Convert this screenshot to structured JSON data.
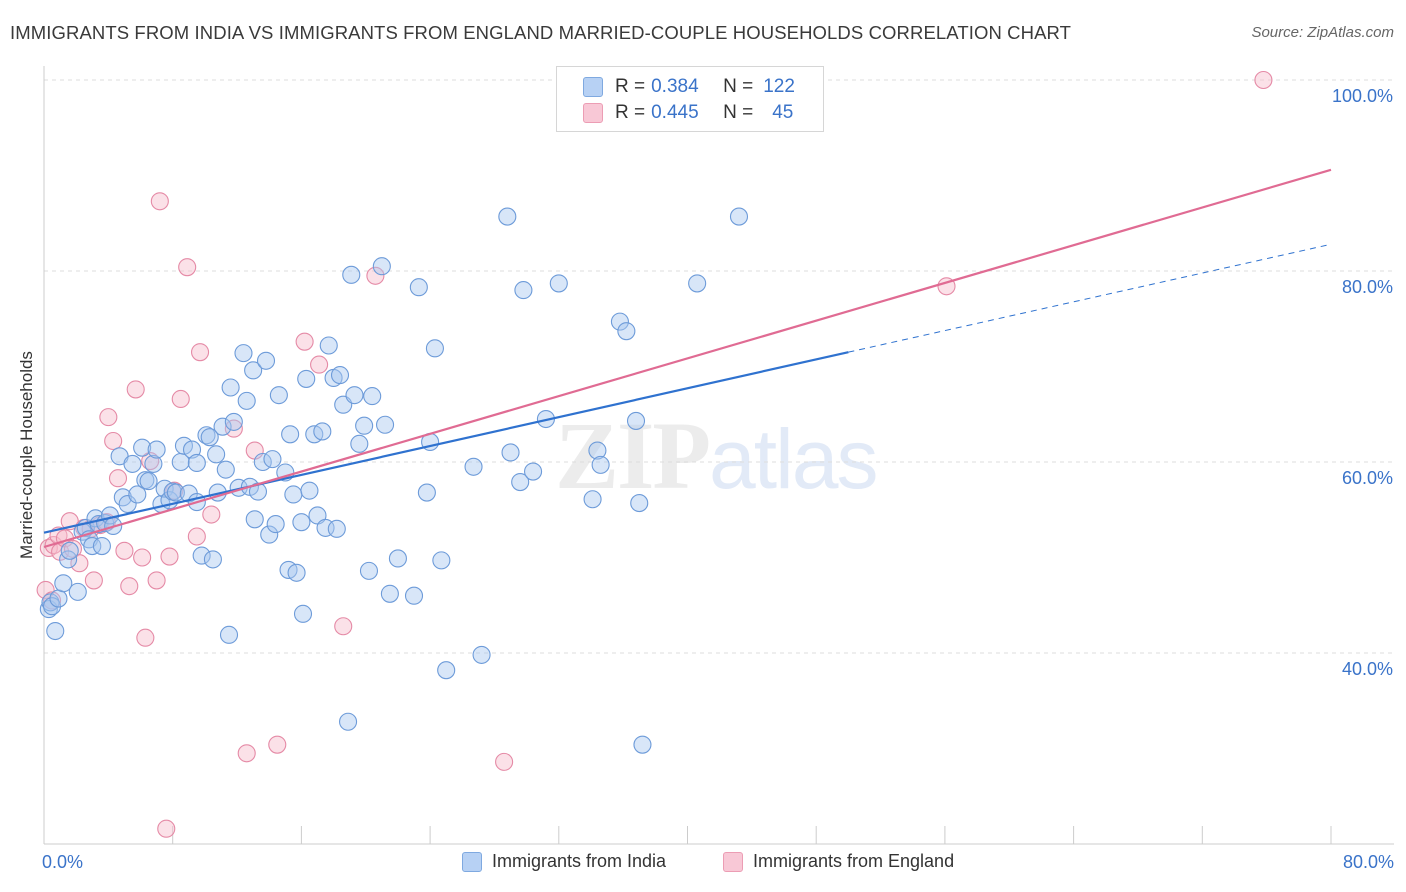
{
  "header": {
    "title": "IMMIGRANTS FROM INDIA VS IMMIGRANTS FROM ENGLAND MARRIED-COUPLE HOUSEHOLDS CORRELATION CHART",
    "source": "Source: ZipAtlas.com"
  },
  "legend": {
    "india": {
      "r_label": "R =",
      "r_value": "0.384",
      "n_label": "N =",
      "n_value": "122"
    },
    "england": {
      "r_label": "R =",
      "r_value": "0.445",
      "n_label": "N =",
      "n_value": "45"
    }
  },
  "watermark": {
    "zip": "ZIP",
    "atlas": "atlas"
  },
  "colors": {
    "india_fill": "#a9c8f0",
    "india_stroke": "#6d9bd9",
    "india_line": "#2f72cf",
    "england_fill": "#f6bccd",
    "england_stroke": "#e58aa6",
    "england_line": "#e06b93",
    "tick_text": "#3a73c9",
    "grid": "#dddddd"
  },
  "chart_data": {
    "type": "scatter",
    "title": "IMMIGRANTS FROM INDIA VS IMMIGRANTS FROM ENGLAND MARRIED-COUPLE HOUSEHOLDS CORRELATION CHART",
    "xlabel": "",
    "ylabel": "Married-couple Households",
    "xlim": [
      0,
      80
    ],
    "ylim": [
      20,
      100
    ],
    "x_tick_labels": [
      "0.0%",
      "80.0%"
    ],
    "y_ticks": [
      {
        "value": 100,
        "label": "100.0%"
      },
      {
        "value": 80,
        "label": "80.0%"
      },
      {
        "value": 60,
        "label": "60.0%"
      },
      {
        "value": 40,
        "label": "40.0%"
      }
    ],
    "grid": true,
    "legend_position": "top-center",
    "series": [
      {
        "name": "Immigrants from India",
        "r": 0.384,
        "n": 122,
        "trend": {
          "x1": 0,
          "y1": 52.6,
          "x2": 50,
          "y2": 71.5,
          "dashed_to_x": 80,
          "dashed_to_y": 82.8
        },
        "points": [
          [
            0.3,
            44.6
          ],
          [
            0.4,
            45.3
          ],
          [
            0.5,
            44.9
          ],
          [
            0.7,
            42.3
          ],
          [
            0.9,
            45.7
          ],
          [
            1.2,
            47.3
          ],
          [
            1.5,
            49.8
          ],
          [
            1.6,
            50.7
          ],
          [
            2.1,
            46.4
          ],
          [
            2.4,
            52.7
          ],
          [
            2.6,
            53.1
          ],
          [
            2.8,
            51.9
          ],
          [
            3.0,
            51.2
          ],
          [
            3.2,
            54.1
          ],
          [
            3.4,
            53.5
          ],
          [
            3.6,
            51.2
          ],
          [
            3.8,
            53.6
          ],
          [
            4.1,
            54.4
          ],
          [
            4.3,
            53.3
          ],
          [
            4.7,
            60.6
          ],
          [
            4.9,
            56.3
          ],
          [
            5.2,
            55.6
          ],
          [
            5.5,
            59.8
          ],
          [
            5.8,
            56.6
          ],
          [
            6.1,
            61.5
          ],
          [
            6.3,
            58.1
          ],
          [
            6.5,
            58.0
          ],
          [
            6.8,
            59.8
          ],
          [
            7.0,
            61.3
          ],
          [
            7.3,
            55.6
          ],
          [
            7.5,
            57.2
          ],
          [
            7.8,
            56.0
          ],
          [
            8.0,
            56.9
          ],
          [
            8.2,
            56.8
          ],
          [
            8.5,
            60.0
          ],
          [
            8.7,
            61.7
          ],
          [
            9.0,
            56.7
          ],
          [
            9.2,
            61.3
          ],
          [
            9.5,
            59.9
          ],
          [
            9.5,
            55.8
          ],
          [
            9.8,
            50.2
          ],
          [
            10.1,
            62.8
          ],
          [
            10.3,
            62.6
          ],
          [
            10.5,
            49.8
          ],
          [
            10.7,
            60.8
          ],
          [
            10.8,
            56.8
          ],
          [
            11.1,
            63.7
          ],
          [
            11.3,
            59.2
          ],
          [
            11.5,
            41.9
          ],
          [
            11.6,
            67.8
          ],
          [
            11.8,
            64.2
          ],
          [
            12.1,
            57.3
          ],
          [
            12.4,
            71.4
          ],
          [
            12.6,
            66.4
          ],
          [
            12.8,
            57.4
          ],
          [
            13.0,
            69.6
          ],
          [
            13.1,
            54.0
          ],
          [
            13.3,
            56.9
          ],
          [
            13.6,
            60.0
          ],
          [
            13.8,
            70.6
          ],
          [
            14.0,
            52.4
          ],
          [
            14.2,
            60.3
          ],
          [
            14.4,
            53.5
          ],
          [
            14.6,
            67.0
          ],
          [
            15.0,
            58.9
          ],
          [
            15.2,
            48.7
          ],
          [
            15.3,
            62.9
          ],
          [
            15.5,
            56.6
          ],
          [
            15.7,
            48.4
          ],
          [
            16.0,
            53.7
          ],
          [
            16.1,
            44.1
          ],
          [
            16.3,
            68.7
          ],
          [
            16.5,
            57.0
          ],
          [
            16.8,
            62.9
          ],
          [
            17.0,
            54.4
          ],
          [
            17.3,
            63.2
          ],
          [
            17.5,
            53.1
          ],
          [
            17.7,
            72.2
          ],
          [
            18.0,
            68.8
          ],
          [
            18.2,
            53.0
          ],
          [
            18.4,
            69.1
          ],
          [
            18.6,
            66.0
          ],
          [
            18.9,
            32.8
          ],
          [
            19.1,
            79.6
          ],
          [
            19.3,
            67.0
          ],
          [
            19.6,
            61.9
          ],
          [
            19.9,
            63.8
          ],
          [
            20.2,
            48.6
          ],
          [
            20.4,
            66.9
          ],
          [
            21.0,
            80.5
          ],
          [
            21.2,
            63.9
          ],
          [
            21.5,
            46.2
          ],
          [
            22.0,
            49.9
          ],
          [
            23.0,
            46.0
          ],
          [
            23.3,
            78.3
          ],
          [
            23.8,
            56.8
          ],
          [
            24.0,
            62.1
          ],
          [
            24.3,
            71.9
          ],
          [
            24.7,
            49.7
          ],
          [
            25.0,
            38.2
          ],
          [
            26.7,
            59.5
          ],
          [
            27.2,
            39.8
          ],
          [
            28.8,
            85.7
          ],
          [
            29.0,
            61.0
          ],
          [
            29.6,
            57.9
          ],
          [
            29.8,
            78.0
          ],
          [
            30.4,
            59.0
          ],
          [
            31.2,
            64.5
          ],
          [
            32.0,
            78.7
          ],
          [
            34.1,
            56.1
          ],
          [
            34.4,
            61.2
          ],
          [
            34.6,
            59.7
          ],
          [
            35.8,
            74.7
          ],
          [
            36.2,
            73.7
          ],
          [
            36.8,
            64.3
          ],
          [
            37.0,
            55.7
          ],
          [
            37.2,
            30.4
          ],
          [
            40.6,
            78.7
          ],
          [
            43.2,
            85.7
          ]
        ]
      },
      {
        "name": "Immigrants from England",
        "r": 0.445,
        "n": 45,
        "trend": {
          "x1": 0,
          "y1": 51.1,
          "x2": 80,
          "y2": 90.6
        },
        "points": [
          [
            0.1,
            46.6
          ],
          [
            0.3,
            51.0
          ],
          [
            0.5,
            45.5
          ],
          [
            0.6,
            51.3
          ],
          [
            0.9,
            52.3
          ],
          [
            1.0,
            50.6
          ],
          [
            1.3,
            52.0
          ],
          [
            1.6,
            53.8
          ],
          [
            1.8,
            50.9
          ],
          [
            2.2,
            49.4
          ],
          [
            2.5,
            53.1
          ],
          [
            2.9,
            53.0
          ],
          [
            3.1,
            47.6
          ],
          [
            3.5,
            53.4
          ],
          [
            3.9,
            53.7
          ],
          [
            4.0,
            64.7
          ],
          [
            4.3,
            62.2
          ],
          [
            4.6,
            58.3
          ],
          [
            5.0,
            50.7
          ],
          [
            5.3,
            47.0
          ],
          [
            5.7,
            67.6
          ],
          [
            6.1,
            50.0
          ],
          [
            6.3,
            41.6
          ],
          [
            6.6,
            60.1
          ],
          [
            7.0,
            47.6
          ],
          [
            7.2,
            87.3
          ],
          [
            7.6,
            21.6
          ],
          [
            7.8,
            50.1
          ],
          [
            8.1,
            57.0
          ],
          [
            8.5,
            66.6
          ],
          [
            8.9,
            80.4
          ],
          [
            9.5,
            52.2
          ],
          [
            9.7,
            71.5
          ],
          [
            10.4,
            54.5
          ],
          [
            11.8,
            63.5
          ],
          [
            12.6,
            29.5
          ],
          [
            13.1,
            61.2
          ],
          [
            14.5,
            30.4
          ],
          [
            16.2,
            72.6
          ],
          [
            17.1,
            70.2
          ],
          [
            18.6,
            42.8
          ],
          [
            20.6,
            79.5
          ],
          [
            28.6,
            28.6
          ],
          [
            56.1,
            78.4
          ],
          [
            75.8,
            100.0
          ]
        ]
      }
    ]
  },
  "y_axis_label": "Married-couple Households",
  "bottom_legend": {
    "india": "Immigrants from India",
    "england": "Immigrants from England"
  },
  "x_axis": {
    "min_label": "0.0%",
    "max_label": "80.0%"
  }
}
